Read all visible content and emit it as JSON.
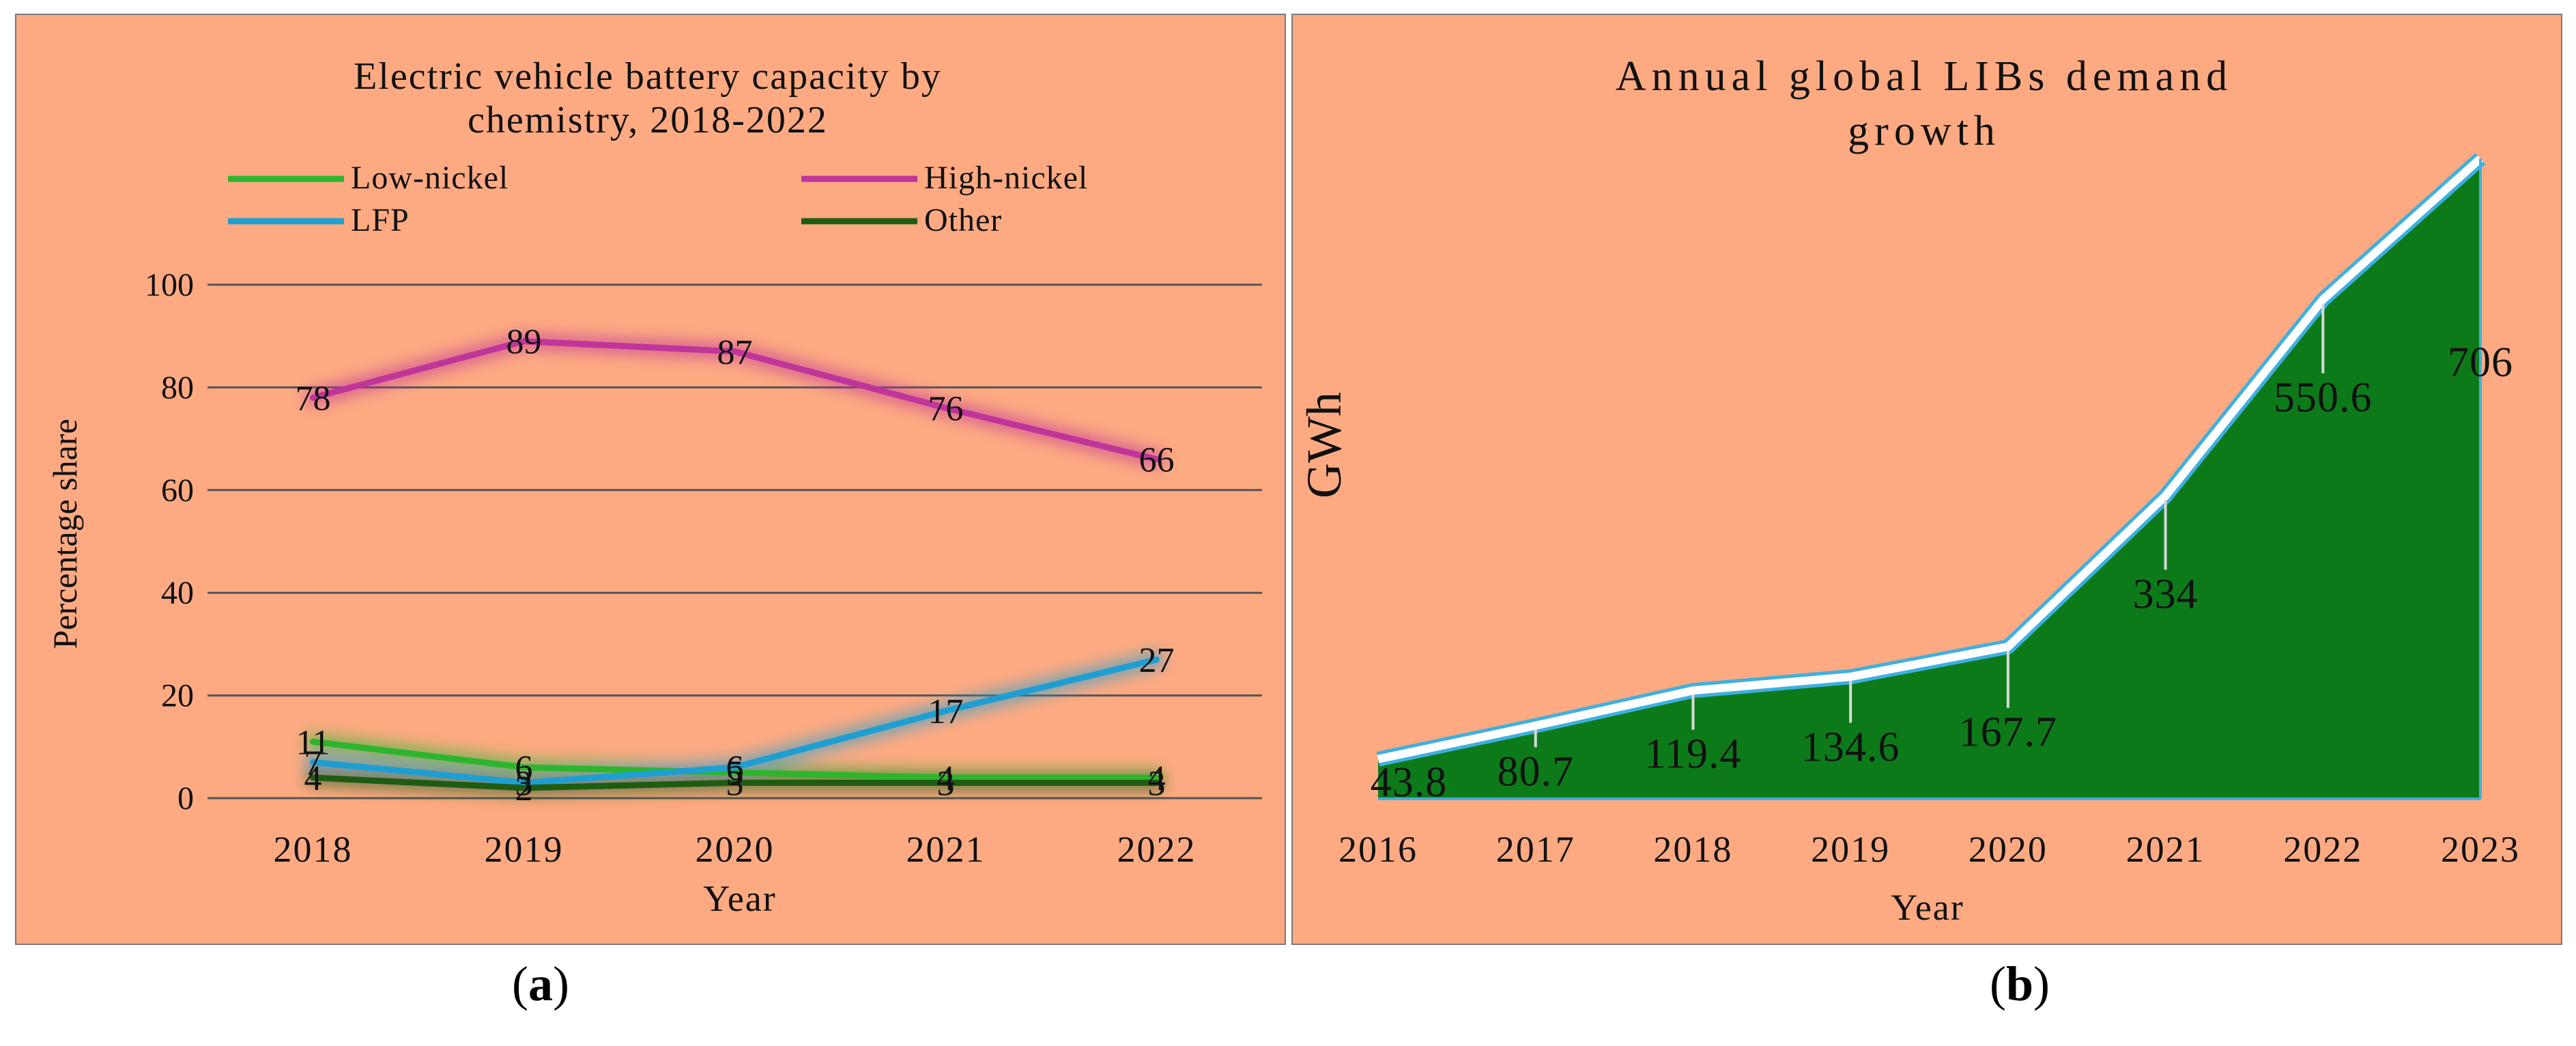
{
  "chart_data": [
    {
      "type": "line",
      "title": "Electric vehicle battery capacity by chemistry, 2018-2022",
      "title_lines": [
        "Electric vehicle battery capacity by",
        "chemistry, 2018-2022"
      ],
      "xlabel": "Year",
      "ylabel": "Percentage share",
      "ylim": [
        0,
        100
      ],
      "yticks": [
        "0",
        "20",
        "40",
        "60",
        "80",
        "100"
      ],
      "categories": [
        "2018",
        "2019",
        "2020",
        "2021",
        "2022"
      ],
      "grid": true,
      "legend_position": "top",
      "series": [
        {
          "name": "Low-nickel",
          "color": "#2DB52D",
          "values": [
            11,
            6,
            5,
            4,
            4
          ],
          "labels": [
            "11",
            "6",
            "5",
            "4",
            "4"
          ]
        },
        {
          "name": "High-nickel",
          "color": "#C0359A",
          "values": [
            78,
            89,
            87,
            76,
            66
          ],
          "labels": [
            "78",
            "89",
            "87",
            "76",
            "66"
          ]
        },
        {
          "name": "LFP",
          "color": "#1F9ED1",
          "values": [
            7,
            3,
            6,
            17,
            27
          ],
          "labels": [
            "7",
            "3",
            "6",
            "17",
            "27"
          ]
        },
        {
          "name": "Other",
          "color": "#1F5C12",
          "values": [
            4,
            2,
            3,
            3,
            3
          ],
          "labels": [
            "4",
            "2",
            "3",
            "3",
            "3"
          ]
        }
      ]
    },
    {
      "type": "area",
      "title": "Annual global LIBs demand growth",
      "title_lines": [
        "Annual global LIBs demand",
        "growth"
      ],
      "xlabel": "Year",
      "ylabel": "GWh",
      "ylim": [
        0,
        740
      ],
      "categories": [
        "2016",
        "2017",
        "2018",
        "2019",
        "2020",
        "2021",
        "2022",
        "2023"
      ],
      "values": [
        43.8,
        80.7,
        119.4,
        134.6,
        167.7,
        334,
        550.6,
        706
      ],
      "labels": [
        "43.8",
        "80.7",
        "119.4",
        "134.6",
        "167.7",
        "334",
        "550.6",
        "706"
      ],
      "fill_color": "#0D7A1A",
      "edge_color": "#3FB0E0"
    }
  ],
  "captions": {
    "a": "a",
    "b": "b"
  },
  "colors": {
    "panel_bg": "#FDAA82",
    "grid": "#555555"
  }
}
